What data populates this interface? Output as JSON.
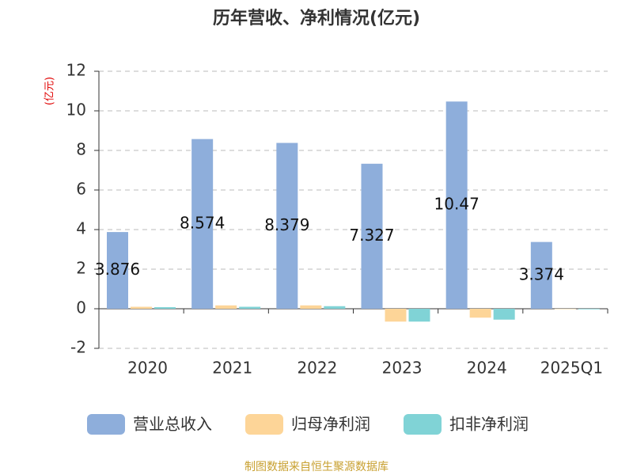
{
  "chart_data": {
    "type": "bar",
    "title": "历年营收、净利情况(亿元)",
    "y_label": "(亿元)",
    "source": "制图数据来自恒生聚源数据库",
    "categories": [
      "2020",
      "2021",
      "2022",
      "2023",
      "2024",
      "2025Q1"
    ],
    "series": [
      {
        "name": "营业总收入",
        "color": "#8eaedb",
        "labels": true,
        "values": [
          3.876,
          8.574,
          8.379,
          7.327,
          10.47,
          3.374
        ]
      },
      {
        "name": "归母净利润",
        "color": "#fdd598",
        "values": [
          0.1,
          0.17,
          0.17,
          -0.65,
          -0.45,
          -0.02
        ]
      },
      {
        "name": "扣非净利润",
        "color": "#80d3d6",
        "values": [
          0.08,
          0.1,
          0.13,
          -0.65,
          -0.55,
          -0.03
        ]
      }
    ],
    "ylim": [
      -2,
      12
    ],
    "yticks": [
      -2,
      0,
      2,
      4,
      6,
      8,
      10,
      12
    ],
    "grid": true
  }
}
